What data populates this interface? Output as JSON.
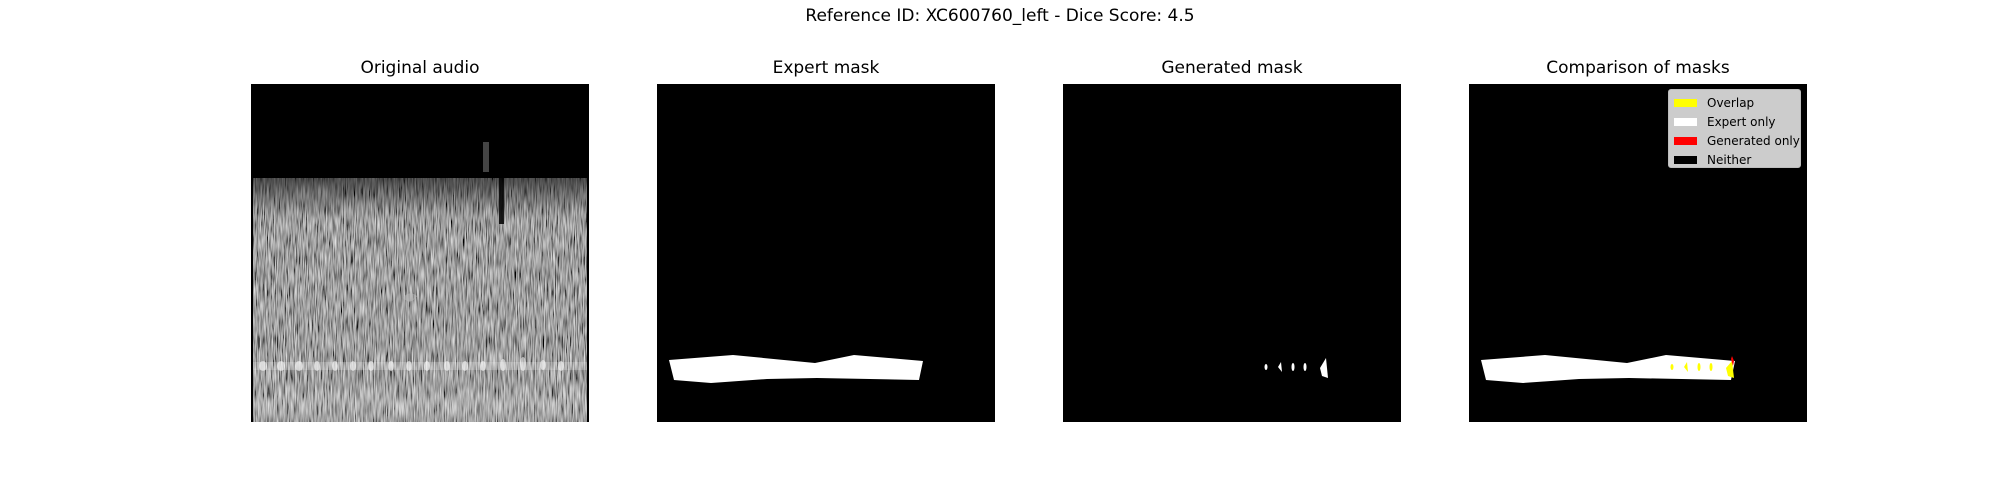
{
  "figure": {
    "title": "Reference ID: XC600760_left - Dice Score: 4.5"
  },
  "panels": [
    {
      "title": "Original audio"
    },
    {
      "title": "Expert mask"
    },
    {
      "title": "Generated mask"
    },
    {
      "title": "Comparison of masks"
    }
  ],
  "legend": {
    "items": [
      {
        "label": "Overlap",
        "color": "#ffff00"
      },
      {
        "label": "Expert only",
        "color": "#ffffff"
      },
      {
        "label": "Generated only",
        "color": "#ff0000"
      },
      {
        "label": "Neither",
        "color": "#000000"
      }
    ]
  },
  "colors": {
    "background": "#000000",
    "spectrogram": "#808080"
  }
}
